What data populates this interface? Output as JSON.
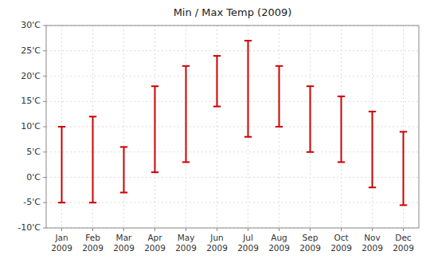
{
  "chart_data": {
    "type": "range",
    "title": "Min / Max Temp (2009)",
    "categories": [
      "Jan\n2009",
      "Feb\n2009",
      "Mar\n2009",
      "Apr\n2009",
      "May\n2009",
      "Jun\n2009",
      "Jul\n2009",
      "Aug\n2009",
      "Sep\n2009",
      "Oct\n2009",
      "Nov\n2009",
      "Dec\n2009"
    ],
    "series": [
      {
        "values": [
          -5,
          -5,
          -3,
          1,
          3,
          14,
          8,
          10,
          5,
          3,
          -2,
          -5.5
        ]
      },
      {
        "values": [
          10,
          12,
          6,
          18,
          22,
          24,
          27,
          22,
          18,
          16,
          13,
          9
        ]
      }
    ],
    "color": "#cc0000",
    "ylim": [
      -10,
      30
    ],
    "yticks": [
      {
        "value": -10,
        "label": "-10'C"
      },
      {
        "value": -5,
        "label": "-5'C"
      },
      {
        "value": 0,
        "label": "0'C"
      },
      {
        "value": 5,
        "label": "5'C"
      },
      {
        "value": 10,
        "label": "10'C"
      },
      {
        "value": 15,
        "label": "15'C"
      },
      {
        "value": 20,
        "label": "20'C"
      },
      {
        "value": 25,
        "label": "25'C"
      },
      {
        "value": 30,
        "label": "30'C"
      }
    ],
    "grid": true
  }
}
